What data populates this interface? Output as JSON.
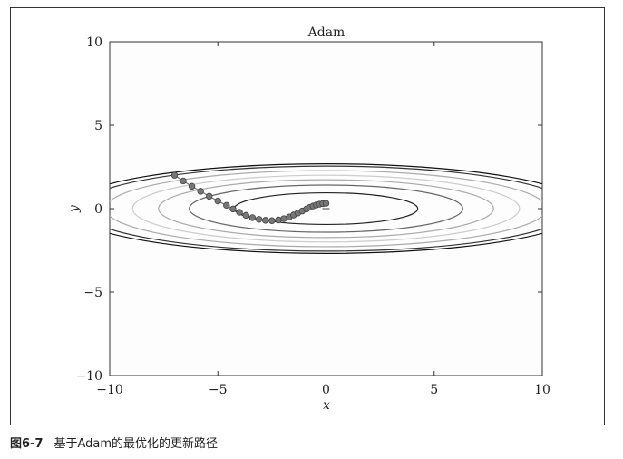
{
  "caption": {
    "figure_number": "图6-7",
    "text": "基于Adam的最优化的更新路径"
  },
  "chart_data": {
    "type": "scatter",
    "title": "Adam",
    "xlabel": "x",
    "ylabel": "y",
    "xlim": [
      -10,
      10
    ],
    "ylim": [
      -10,
      10
    ],
    "xticks": [
      -10,
      -5,
      0,
      5,
      10
    ],
    "yticks": [
      -10,
      -5,
      0,
      5,
      10
    ],
    "xtick_labels": [
      "−10",
      "−5",
      "0",
      "5",
      "10"
    ],
    "ytick_labels": [
      "−10",
      "−5",
      "0",
      "5",
      "10"
    ],
    "grid": false,
    "contour_function": "x^2/20 + y^2",
    "contour_levels": [
      0.9,
      2.0,
      3.0,
      4.0,
      5.2,
      6.5,
      7.2
    ],
    "contour_colors": [
      "#222222",
      "#666666",
      "#aaaaaa",
      "#cccccc",
      "#aaaaaa",
      "#333333",
      "#111111"
    ],
    "minimum_marker": {
      "x": 0,
      "y": 0,
      "symbol": "+"
    },
    "path_color": "#777777",
    "path": {
      "x": [
        -7.0,
        -6.6,
        -6.2,
        -5.8,
        -5.4,
        -5.0,
        -4.6,
        -4.3,
        -4.0,
        -3.7,
        -3.4,
        -3.1,
        -2.8,
        -2.5,
        -2.2,
        -1.95,
        -1.7,
        -1.5,
        -1.3,
        -1.1,
        -0.9,
        -0.75,
        -0.6,
        -0.45,
        -0.3,
        -0.15,
        0.0
      ],
      "y": [
        2.0,
        1.66,
        1.34,
        1.04,
        0.74,
        0.46,
        0.2,
        -0.02,
        -0.22,
        -0.4,
        -0.54,
        -0.64,
        -0.7,
        -0.72,
        -0.68,
        -0.6,
        -0.5,
        -0.38,
        -0.26,
        -0.14,
        -0.02,
        0.08,
        0.16,
        0.22,
        0.27,
        0.3,
        0.32
      ]
    }
  }
}
